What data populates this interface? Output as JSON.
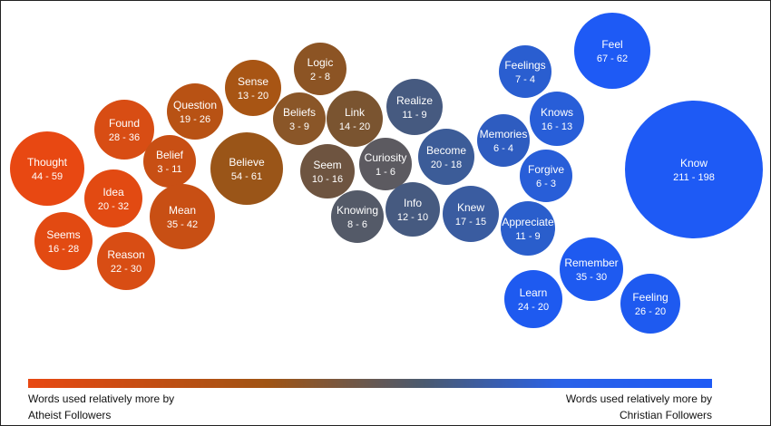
{
  "chart_data": {
    "type": "bubble",
    "bubbles": [
      {
        "word": "Thought",
        "counts": "44 - 59",
        "color": "#e84812"
      },
      {
        "word": "Found",
        "counts": "28 - 36",
        "color": "#d84d14"
      },
      {
        "word": "Idea",
        "counts": "20 - 32",
        "color": "#e24a12"
      },
      {
        "word": "Seems",
        "counts": "16 - 28",
        "color": "#e24a12"
      },
      {
        "word": "Reason",
        "counts": "22 - 30",
        "color": "#d84d14"
      },
      {
        "word": "Belief",
        "counts": "3 - 11",
        "color": "#c84f14"
      },
      {
        "word": "Mean",
        "counts": "35 - 42",
        "color": "#c84f14"
      },
      {
        "word": "Question",
        "counts": "19 - 26",
        "color": "#b85214"
      },
      {
        "word": "Sense",
        "counts": "13 - 20",
        "color": "#a85514"
      },
      {
        "word": "Believe",
        "counts": "54 - 61",
        "color": "#9a5518"
      },
      {
        "word": "Logic",
        "counts": "2 - 8",
        "color": "#8c5424"
      },
      {
        "word": "Beliefs",
        "counts": "3 - 9",
        "color": "#8a5628"
      },
      {
        "word": "Link",
        "counts": "14 - 20",
        "color": "#7a5430"
      },
      {
        "word": "Seem",
        "counts": "10 - 16",
        "color": "#6e5440"
      },
      {
        "word": "Curiosity",
        "counts": "1 - 6",
        "color": "#5c5a60"
      },
      {
        "word": "Knowing",
        "counts": "8 - 6",
        "color": "#545a68"
      },
      {
        "word": "Realize",
        "counts": "11 - 9",
        "color": "#465a80"
      },
      {
        "word": "Info",
        "counts": "12 - 10",
        "color": "#465a80"
      },
      {
        "word": "Become",
        "counts": "20 - 18",
        "color": "#3c5c98"
      },
      {
        "word": "Knew",
        "counts": "17 - 15",
        "color": "#3a5ca0"
      },
      {
        "word": "Memories",
        "counts": "6 - 4",
        "color": "#2e5cc0"
      },
      {
        "word": "Feelings",
        "counts": "7 - 4",
        "color": "#2a5ed0"
      },
      {
        "word": "Knows",
        "counts": "16 - 13",
        "color": "#285ed8"
      },
      {
        "word": "Forgive",
        "counts": "6 - 3",
        "color": "#285ed8"
      },
      {
        "word": "Appreciate",
        "counts": "11 - 9",
        "color": "#2a5ecc"
      },
      {
        "word": "Feel",
        "counts": "67 - 62",
        "color": "#1e5af5"
      },
      {
        "word": "Know",
        "counts": "211 - 198",
        "color": "#1e5af5"
      },
      {
        "word": "Remember",
        "counts": "35 - 30",
        "color": "#1e5af0"
      },
      {
        "word": "Learn",
        "counts": "24 - 20",
        "color": "#1e5af0"
      },
      {
        "word": "Feeling",
        "counts": "26 - 20",
        "color": "#1e5af0"
      }
    ],
    "legend": {
      "left_line1": "Words used relatively more by",
      "left_line2": "Atheist Followers",
      "right_line1": "Words used relatively more by",
      "right_line2": "Christian Followers",
      "gradient_start_color": "#e84812",
      "gradient_end_color": "#1e5af5"
    }
  }
}
